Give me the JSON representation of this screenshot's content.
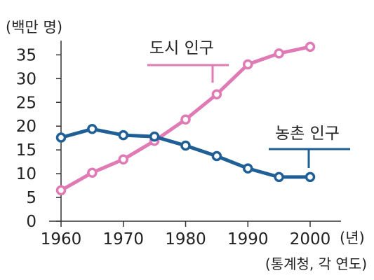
{
  "chart_data": {
    "type": "line",
    "ylabel": "(백만 명)",
    "x_unit_label": "(년)",
    "source": "(통계청, 각 연도)",
    "x_ticks": [
      1960,
      1970,
      1980,
      1990,
      2000
    ],
    "y_ticks": [
      0,
      5,
      10,
      15,
      20,
      25,
      30,
      35
    ],
    "xlim": [
      1957,
      2003
    ],
    "ylim": [
      0,
      38
    ],
    "grid": false,
    "series": [
      {
        "name": "도시 인구",
        "color": "#e07ab5",
        "x": [
          1960,
          1965,
          1970,
          1975,
          1980,
          1985,
          1990,
          1995,
          2000
        ],
        "values": [
          6.5,
          10.2,
          13.0,
          16.9,
          21.4,
          26.7,
          33.0,
          35.3,
          36.7
        ]
      },
      {
        "name": "농촌 인구",
        "color": "#1f5f96",
        "x": [
          1960,
          1965,
          1970,
          1975,
          1980,
          1985,
          1990,
          1995,
          2000
        ],
        "values": [
          17.6,
          19.4,
          18.1,
          17.8,
          15.9,
          13.7,
          11.1,
          9.3,
          9.3
        ]
      }
    ]
  }
}
